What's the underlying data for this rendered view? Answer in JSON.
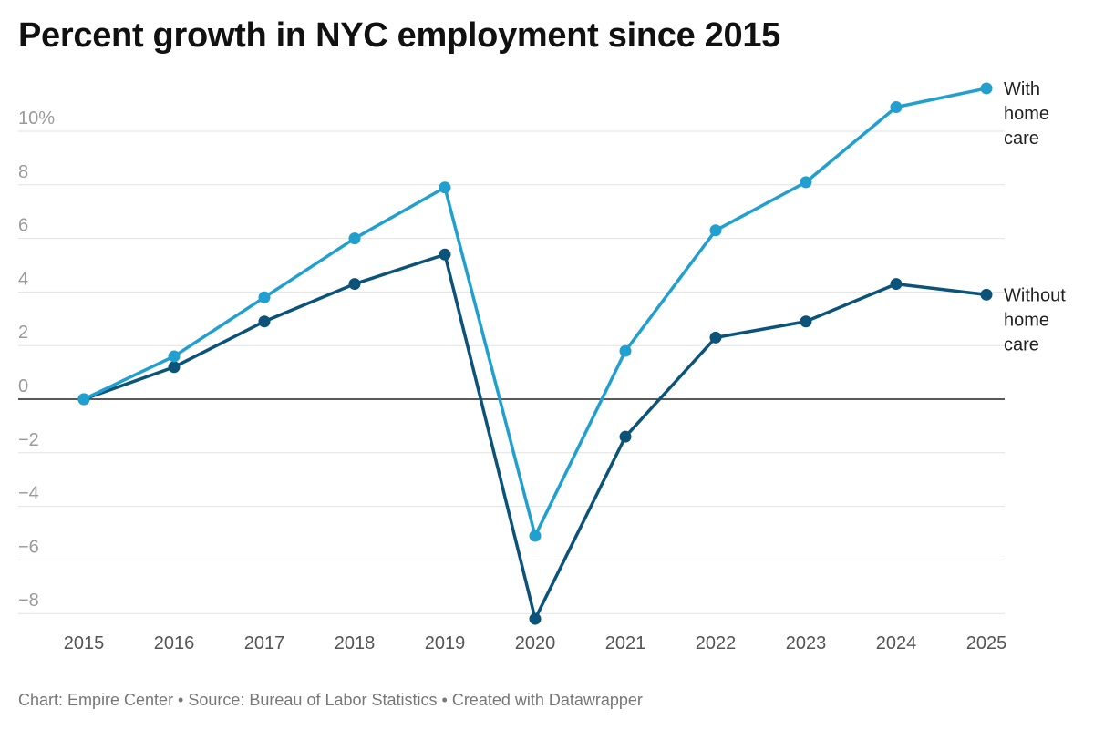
{
  "chart_data": {
    "type": "line",
    "title": "Percent growth in NYC employment since 2015",
    "x": [
      2015,
      2016,
      2017,
      2018,
      2019,
      2020,
      2021,
      2022,
      2023,
      2024,
      2025
    ],
    "x_labels": [
      "2015",
      "2016",
      "2017",
      "2018",
      "2019",
      "2020",
      "2021",
      "2022",
      "2023",
      "2024",
      "2025"
    ],
    "y_ticks": [
      10,
      8,
      6,
      4,
      2,
      0,
      -2,
      -4,
      -6,
      -8
    ],
    "y_tick_labels": [
      "10%",
      "8",
      "6",
      "4",
      "2",
      "0",
      "−2",
      "−4",
      "−6",
      "−8"
    ],
    "ylim": [
      -8.2,
      11.5
    ],
    "grid": true,
    "series": [
      {
        "name": "With home care",
        "label_lines": [
          "With",
          "home",
          "care"
        ],
        "color": "#21a0cf",
        "values": [
          0,
          1.6,
          3.8,
          6.0,
          7.9,
          -5.1,
          1.8,
          6.3,
          8.1,
          10.9,
          11.6
        ]
      },
      {
        "name": "Without home care",
        "label_lines": [
          "Without",
          "home",
          "care"
        ],
        "color": "#0b5379",
        "values": [
          0,
          1.2,
          2.9,
          4.3,
          5.4,
          -8.2,
          -1.4,
          2.3,
          2.9,
          4.3,
          3.9
        ]
      }
    ],
    "xlabel": "",
    "ylabel": ""
  },
  "footer": "Chart: Empire Center • Source: Bureau of Labor Statistics • Created with Datawrapper"
}
